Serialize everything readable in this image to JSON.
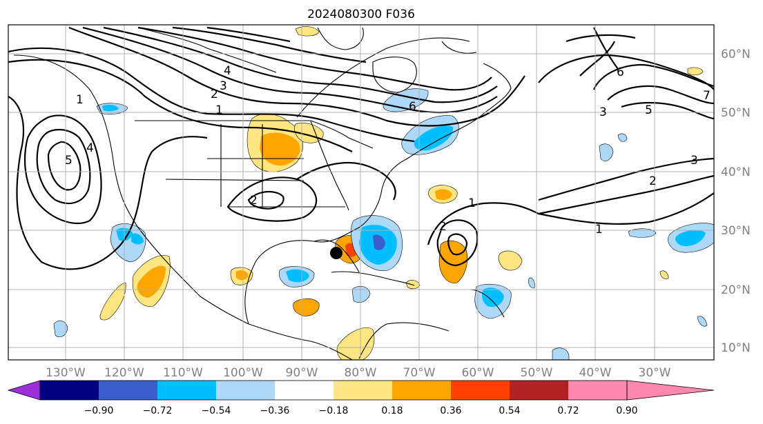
{
  "title": "2024080300 F036",
  "lon_ticks": [
    "130°W",
    "120°W",
    "110°W",
    "100°W",
    "90°W",
    "80°W",
    "70°W",
    "60°W",
    "50°W",
    "40°W",
    "30°W"
  ],
  "lat_ticks": [
    "60°N",
    "50°N",
    "40°N",
    "30°N",
    "20°N",
    "10°N"
  ],
  "colorbar": {
    "ticks": [
      "−0.90",
      "−0.72",
      "−0.54",
      "−0.36",
      "−0.18",
      "0.18",
      "0.36",
      "0.54",
      "0.72",
      "0.90"
    ],
    "colors": [
      "#9b30d9",
      "#000080",
      "#3a5fcd",
      "#00bfff",
      "#add8f7",
      "#ffffff",
      "#ffe680",
      "#ffa500",
      "#ff4000",
      "#b22222",
      "#ff88b0"
    ]
  },
  "contour_labels": [
    "1",
    "1",
    "2",
    "2",
    "3",
    "3",
    "4",
    "4",
    "5",
    "5",
    "6",
    "6",
    "7",
    "2",
    "1",
    "3",
    "2",
    "1"
  ],
  "storm_marker": "black-dot",
  "colors": {
    "grid": "#b0b0b0",
    "contour": "#000000",
    "coast": "#000000"
  }
}
